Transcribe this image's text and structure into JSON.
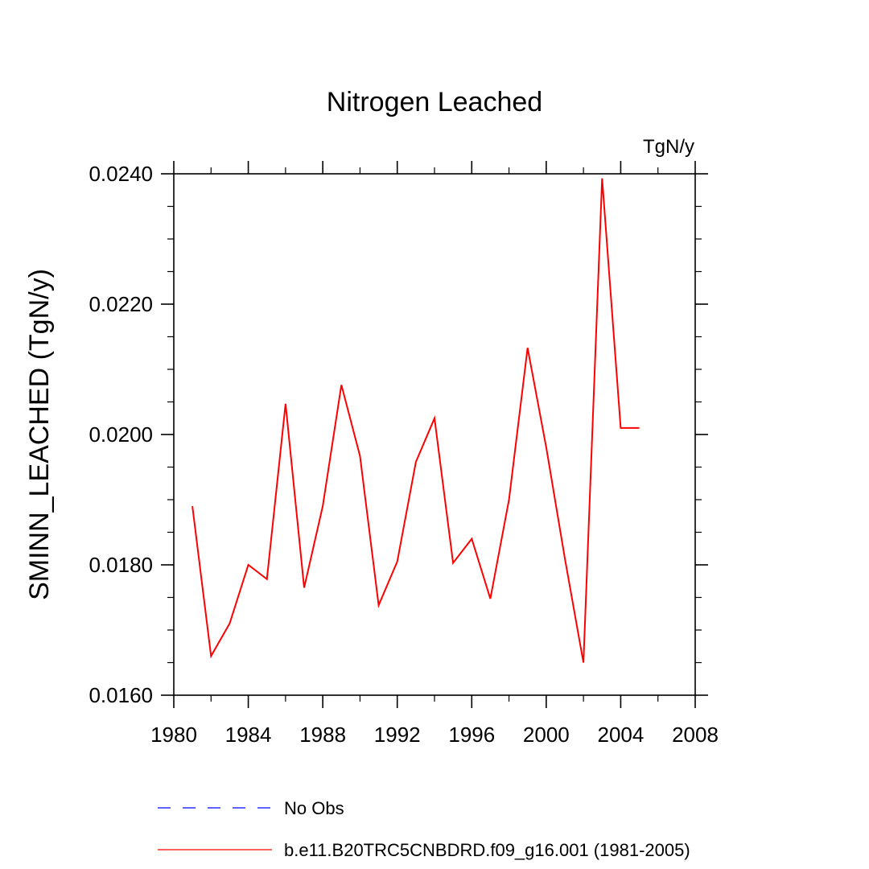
{
  "chart_data": {
    "type": "line",
    "title": "Nitrogen Leached",
    "units_label": "TgN/y",
    "xlabel": "",
    "ylabel": "SMINN_LEACHED  (TgN/y)",
    "xlim": [
      1980,
      2008
    ],
    "ylim": [
      0.016,
      0.024
    ],
    "x_ticks": [
      1980,
      1984,
      1988,
      1992,
      1996,
      2000,
      2004,
      2008
    ],
    "x_tick_labels": [
      "1980",
      "1984",
      "1988",
      "1992",
      "1996",
      "2000",
      "2004",
      "2008"
    ],
    "y_ticks": [
      0.016,
      0.018,
      0.02,
      0.022,
      0.024
    ],
    "y_tick_labels": [
      "0.0160",
      "0.0180",
      "0.0200",
      "0.0220",
      "0.0240"
    ],
    "grid": false,
    "legend_position": "bottom",
    "series": [
      {
        "name": "b.e11.B20TRC5CNBDRD.f09_g16.001 (1981-2005)",
        "color": "#ff0000",
        "style": "solid",
        "x": [
          1981,
          1982,
          1983,
          1984,
          1985,
          1986,
          1987,
          1988,
          1989,
          1990,
          1991,
          1992,
          1993,
          1994,
          1995,
          1996,
          1997,
          1998,
          1999,
          2000,
          2001,
          2002,
          2003,
          2004,
          2005
        ],
        "y": [
          0.0189,
          0.0166,
          0.0171,
          0.018,
          0.01778,
          0.02047,
          0.01765,
          0.0189,
          0.02076,
          0.01967,
          0.01738,
          0.01805,
          0.01958,
          0.02025,
          0.01803,
          0.0184,
          0.01748,
          0.019,
          0.02133,
          0.0198,
          0.0181,
          0.0165,
          0.02393,
          0.0201,
          0.0201
        ]
      }
    ],
    "legend": [
      {
        "label": "No Obs",
        "color": "#0000ff",
        "style": "dashed"
      },
      {
        "label": "b.e11.B20TRC5CNBDRD.f09_g16.001 (1981-2005)",
        "color": "#ff0000",
        "style": "solid"
      }
    ]
  }
}
